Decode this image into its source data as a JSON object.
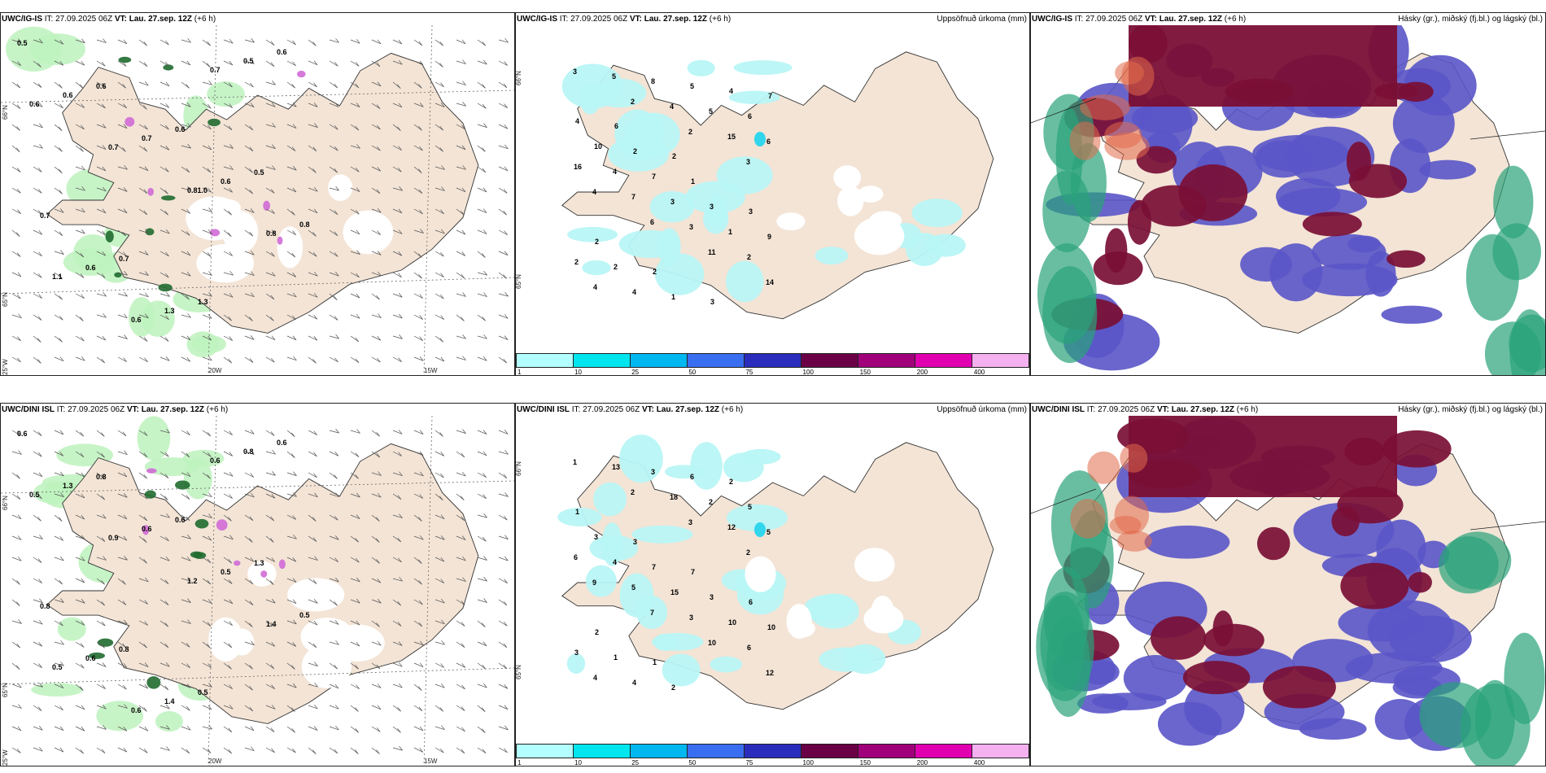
{
  "rows": [
    {
      "model": "UWC/IG-IS",
      "init_label": "IT:",
      "init": "27.09.2025 06Z",
      "valid_label": "VT:",
      "valid": "Lau. 27.sep. 12Z",
      "lead": "(+6 h)",
      "panel1_labels": [
        "0.5",
        "0.6",
        "0.6",
        "0.5",
        "0.7",
        "0.7",
        "1.3",
        "0.6",
        "0.6",
        "0.7",
        "0.6",
        "0.8",
        "0.6",
        "1.3",
        "0.5",
        "0.6",
        "0.7",
        "0.81.0",
        "0.8",
        "1.1",
        "0.6",
        "0.7"
      ],
      "panel2_labels": [
        "3",
        "2",
        "2",
        "3",
        "4",
        "6",
        "11",
        "14",
        "5",
        "4",
        "15",
        "16",
        "7",
        "3",
        "2",
        "4",
        "8",
        "5",
        "6",
        "4",
        "3",
        "1",
        "2",
        "4",
        "5",
        "6",
        "10",
        "7",
        "3",
        "9",
        "2",
        "1",
        "4",
        "4",
        "2",
        "1",
        "3",
        "2",
        "2",
        "3",
        "7",
        "6",
        "2"
      ],
      "axis_labels": [
        "66°N",
        "65°N",
        "25°W",
        "20W",
        "15W"
      ]
    },
    {
      "model": "UWC/DINI ISL",
      "init_label": "IT:",
      "init": "27.09.2025 06Z",
      "valid_label": "VT:",
      "valid": "Lau. 27.sep. 12Z",
      "lead": "(+6 h)",
      "panel1_labels": [
        "0.6",
        "0.8",
        "0.6",
        "1.3",
        "0.8",
        "0.8",
        "0.5",
        "0.6",
        "1.3",
        "0.6",
        "0.5",
        "0.5",
        "0.6",
        "1.4",
        "0.8",
        "0.5",
        "0.9",
        "1.2",
        "1.4",
        "0.5",
        "0.6",
        "0.6"
      ],
      "panel2_labels": [
        "1",
        "2",
        "3",
        "2",
        "9",
        "7",
        "10",
        "12",
        "13",
        "18",
        "12",
        "6",
        "5",
        "3",
        "6",
        "4",
        "3",
        "2",
        "5",
        "4",
        "15",
        "10",
        "3",
        "4",
        "6",
        "5",
        "3",
        "7",
        "3",
        "10",
        "1",
        "2",
        "2",
        "1",
        "3",
        "7",
        "6",
        "2",
        "1"
      ],
      "axis_labels": [
        "66°N",
        "65°N",
        "25°W",
        "20W",
        "15W"
      ]
    }
  ],
  "precip_title": "Uppsöfnuð úrkoma (mm)",
  "cloud_title": "Hásky (gr.), miðský (fj.bl.) og lágský (bl.)",
  "legend": {
    "ticks": [
      "1",
      "10",
      "25",
      "50",
      "75",
      "100",
      "150",
      "200",
      "400"
    ],
    "colors": [
      "#b3ffff",
      "#00e5ee",
      "#00b7f0",
      "#3a6ef0",
      "#2a2dbb",
      "#6a0045",
      "#a0007a",
      "#e000b0",
      "#f5b0f0"
    ]
  },
  "colors": {
    "land": "#f3e4d6",
    "precip_light": "#b8f5f5",
    "low_cloud": "#5a55c8",
    "mid_cloud": "#7a0f35",
    "high_cloud": "#2aa37a"
  }
}
